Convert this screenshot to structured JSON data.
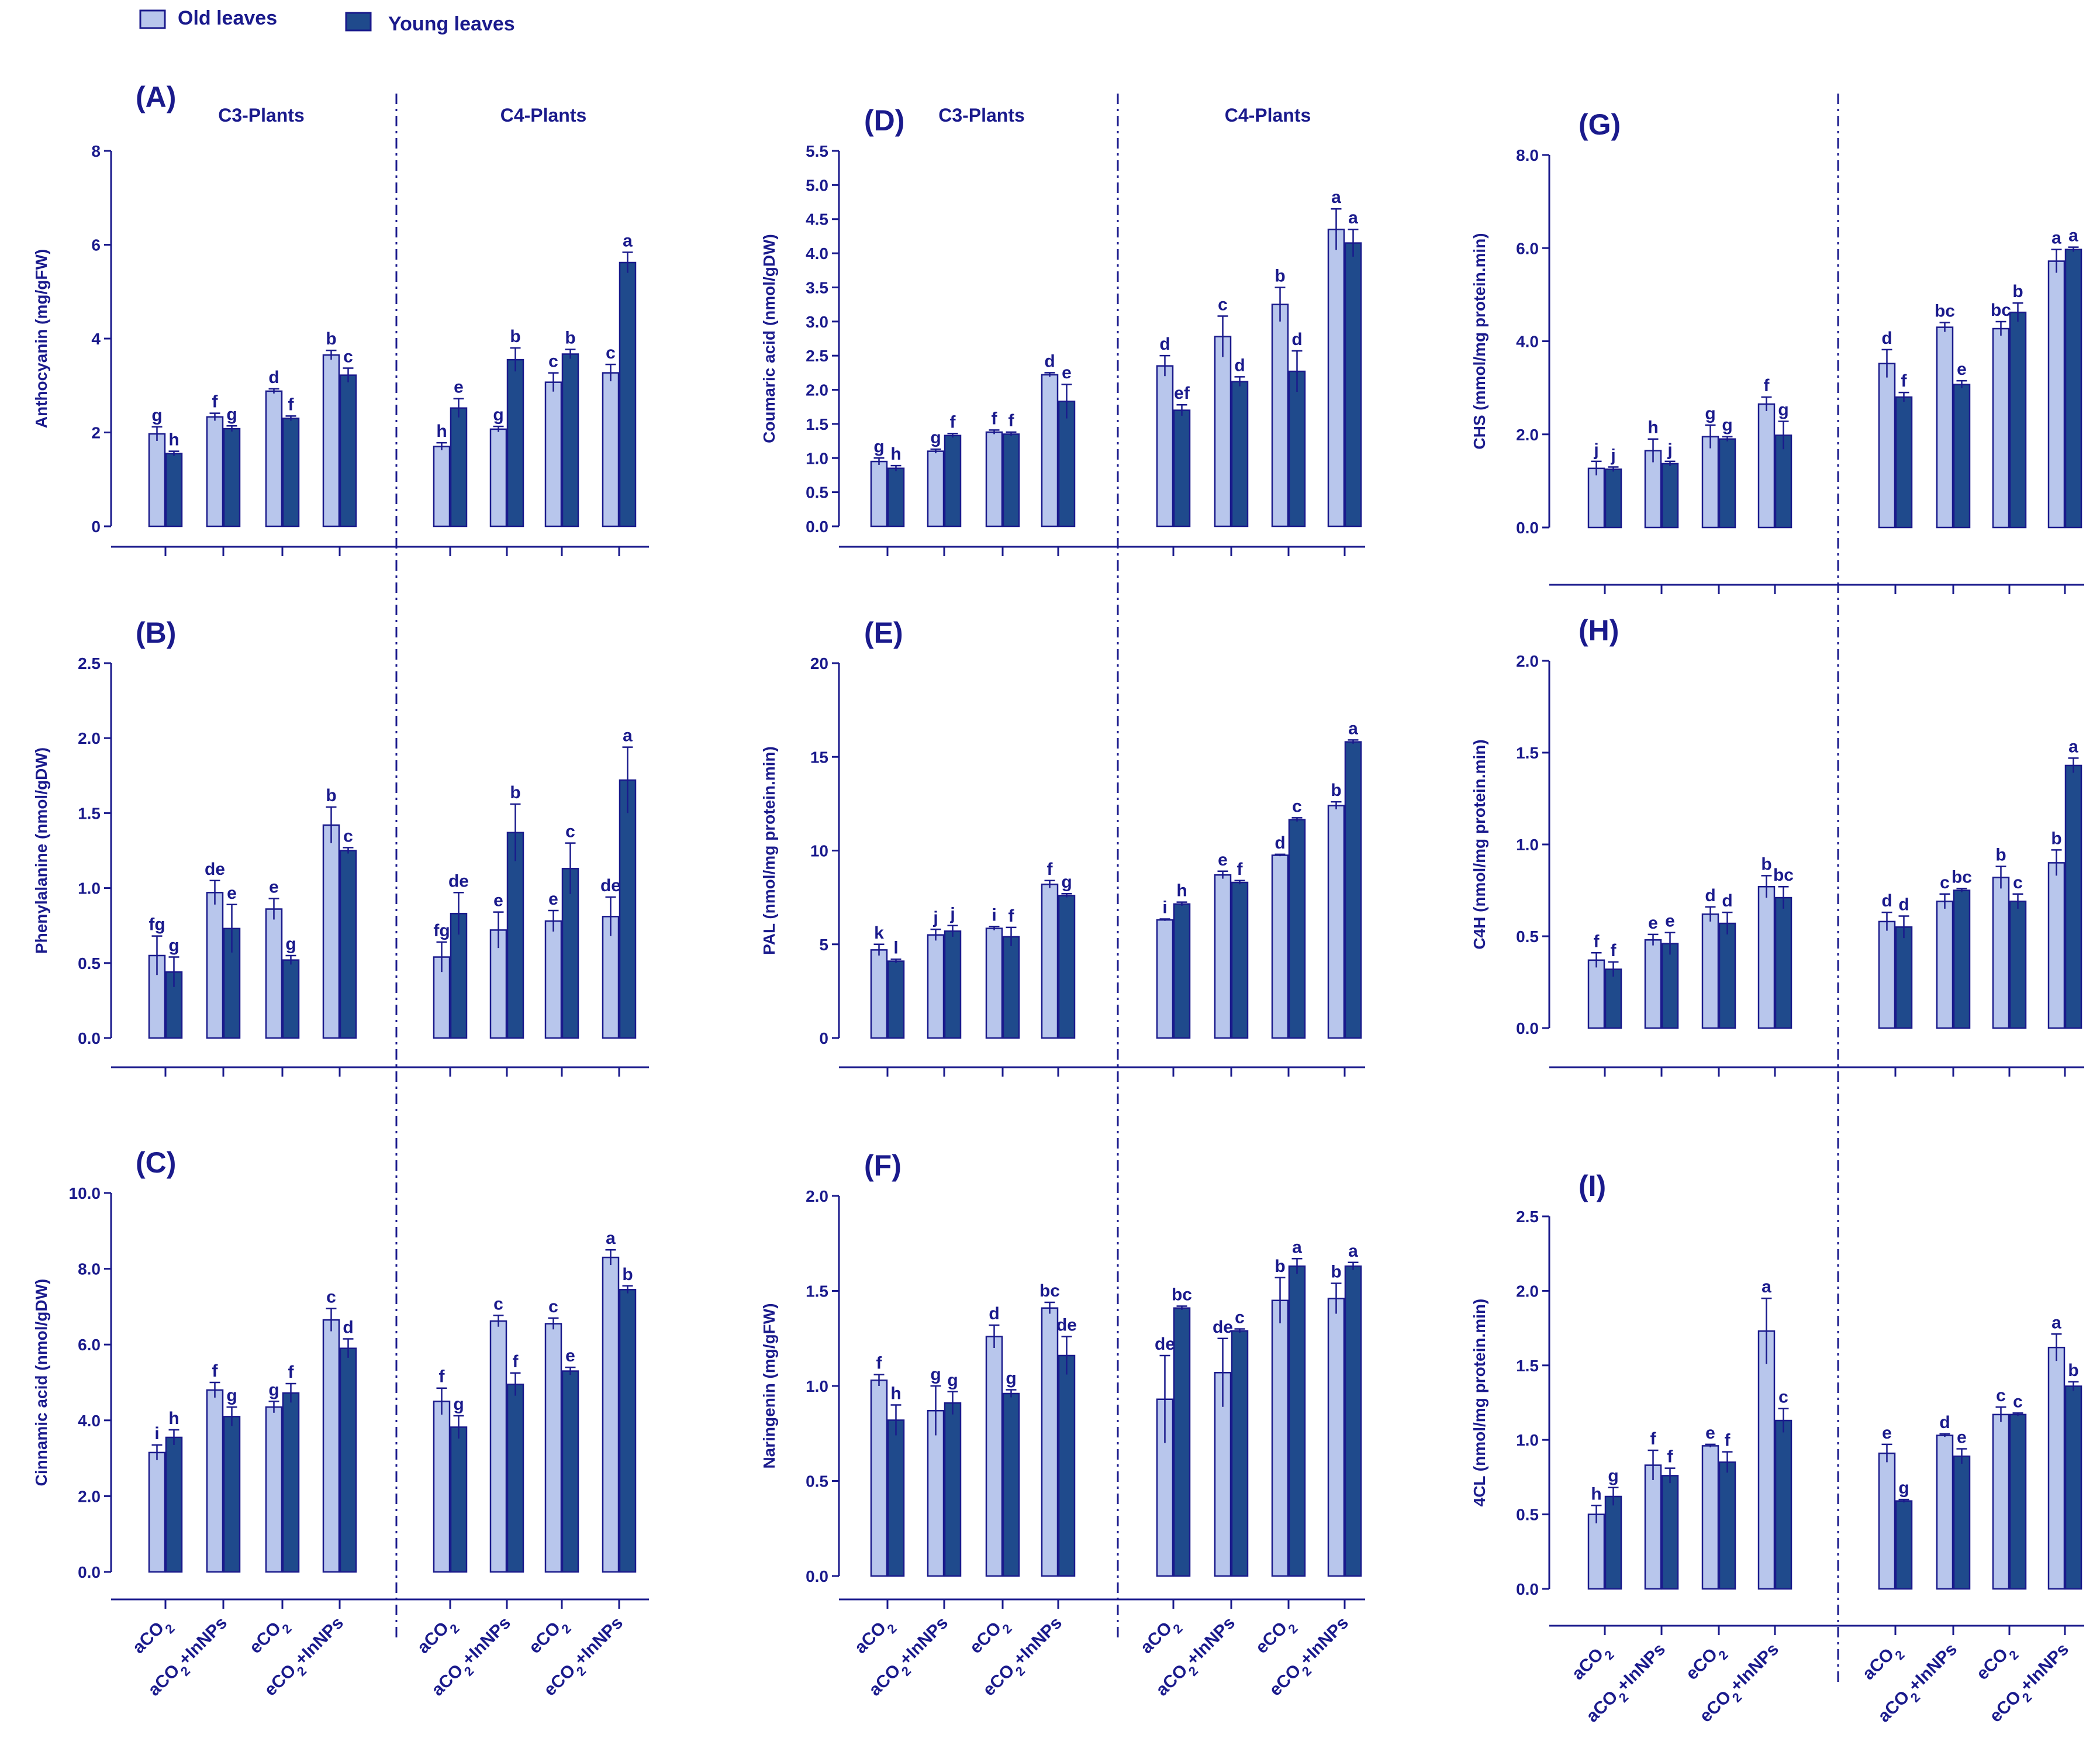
{
  "colors": {
    "old": "#b8c6ec",
    "young": "#1f4a8c",
    "ink": "#1a1a8c"
  },
  "legend": {
    "old_label": "Old leaves",
    "young_label": "Young leaves"
  },
  "group_headers": {
    "c3": "C3-Plants",
    "c4": "C4-Plants"
  },
  "chart_data": [
    {
      "id": "A",
      "type": "bar",
      "panel_label": "(A)",
      "ylabel": "Anthocyanin (mg/gFW)",
      "ylim": [
        0,
        8
      ],
      "yticks": [
        "0",
        "2",
        "4",
        "6",
        "8"
      ],
      "show_group_headers": true,
      "categories": [
        "aCO2",
        "aCO2+InNPs",
        "eCO2",
        "eCO2+InNPs"
      ],
      "c3": {
        "old": [
          1.97,
          2.33,
          2.88,
          3.65
        ],
        "old_err": [
          0.15,
          0.08,
          0.05,
          0.1
        ],
        "young": [
          1.55,
          2.08,
          2.3,
          3.22
        ],
        "young_err": [
          0.05,
          0.06,
          0.05,
          0.15
        ],
        "old_letters": [
          "g",
          "f",
          "d",
          "b"
        ],
        "young_letters": [
          "h",
          "g",
          "f",
          "c"
        ]
      },
      "c4": {
        "old": [
          1.7,
          2.07,
          3.07,
          3.27
        ],
        "old_err": [
          0.08,
          0.06,
          0.2,
          0.18
        ],
        "young": [
          2.52,
          3.55,
          3.67,
          5.62
        ],
        "young_err": [
          0.2,
          0.25,
          0.1,
          0.22
        ],
        "old_letters": [
          "h",
          "g",
          "c",
          "c"
        ],
        "young_letters": [
          "e",
          "b",
          "b",
          "a"
        ]
      }
    },
    {
      "id": "B",
      "type": "bar",
      "panel_label": "(B)",
      "ylabel": "Phenylalanine (nmol/gDW)",
      "ylim": [
        0,
        2.5
      ],
      "yticks": [
        "0.0",
        "0.5",
        "1.0",
        "1.5",
        "2.0",
        "2.5"
      ],
      "show_group_headers": false,
      "categories": [
        "aCO2",
        "aCO2+InNPs",
        "eCO2",
        "eCO2+InNPs"
      ],
      "c3": {
        "old": [
          0.55,
          0.97,
          0.86,
          1.42
        ],
        "old_err": [
          0.13,
          0.08,
          0.07,
          0.12
        ],
        "young": [
          0.44,
          0.73,
          0.52,
          1.25
        ],
        "young_err": [
          0.1,
          0.16,
          0.03,
          0.02
        ],
        "old_letters": [
          "fg",
          "de",
          "e",
          "b"
        ],
        "young_letters": [
          "g",
          "e",
          "g",
          "c"
        ]
      },
      "c4": {
        "old": [
          0.54,
          0.72,
          0.78,
          0.81
        ],
        "old_err": [
          0.1,
          0.12,
          0.07,
          0.13
        ],
        "young": [
          0.83,
          1.37,
          1.13,
          1.72
        ],
        "young_err": [
          0.14,
          0.19,
          0.17,
          0.22
        ],
        "old_letters": [
          "fg",
          "e",
          "e",
          "de"
        ],
        "young_letters": [
          "de",
          "b",
          "c",
          "a"
        ]
      }
    },
    {
      "id": "C",
      "type": "bar",
      "panel_label": "(C)",
      "ylabel": "Cinnamic acid (nmol/gDW)",
      "ylim": [
        0,
        10
      ],
      "yticks": [
        "0.0",
        "2.0",
        "4.0",
        "6.0",
        "8.0",
        "10.0"
      ],
      "show_group_headers": false,
      "categories": [
        "aCO2",
        "aCO2+InNPs",
        "eCO2",
        "eCO2+InNPs"
      ],
      "c3": {
        "old": [
          3.15,
          4.8,
          4.35,
          6.65
        ],
        "old_err": [
          0.2,
          0.2,
          0.15,
          0.3
        ],
        "young": [
          3.55,
          4.1,
          4.72,
          5.9
        ],
        "young_err": [
          0.2,
          0.25,
          0.25,
          0.25
        ],
        "old_letters": [
          "i",
          "f",
          "g",
          "c"
        ],
        "young_letters": [
          "h",
          "g",
          "f",
          "d"
        ]
      },
      "c4": {
        "old": [
          4.5,
          6.62,
          6.55,
          8.3
        ],
        "old_err": [
          0.35,
          0.15,
          0.15,
          0.2
        ],
        "young": [
          3.82,
          4.95,
          5.3,
          7.45
        ],
        "young_err": [
          0.3,
          0.3,
          0.1,
          0.1
        ],
        "old_letters": [
          "f",
          "c",
          "c",
          "a"
        ],
        "young_letters": [
          "g",
          "f",
          "e",
          "b"
        ]
      }
    },
    {
      "id": "D",
      "type": "bar",
      "panel_label": "(D)",
      "ylabel": "Coumaric acid (nmol/gDW)",
      "ylim": [
        0,
        5.5
      ],
      "yticks": [
        "0.0",
        "0.5",
        "1.0",
        "1.5",
        "2.0",
        "2.5",
        "3.0",
        "3.5",
        "4.0",
        "4.5",
        "5.0",
        "5.5"
      ],
      "show_group_headers": true,
      "categories": [
        "aCO2",
        "aCO2+InNPs",
        "eCO2",
        "eCO2+InNPs"
      ],
      "c3": {
        "old": [
          0.95,
          1.1,
          1.38,
          2.22
        ],
        "old_err": [
          0.05,
          0.03,
          0.03,
          0.03
        ],
        "young": [
          0.85,
          1.33,
          1.35,
          1.83
        ],
        "young_err": [
          0.04,
          0.03,
          0.03,
          0.25
        ],
        "old_letters": [
          "g",
          "g",
          "f",
          "d"
        ],
        "young_letters": [
          "h",
          "f",
          "f",
          "e"
        ]
      },
      "c4": {
        "old": [
          2.35,
          2.78,
          3.25,
          4.35
        ],
        "old_err": [
          0.15,
          0.3,
          0.25,
          0.3
        ],
        "young": [
          1.7,
          2.12,
          2.27,
          4.15
        ],
        "young_err": [
          0.08,
          0.07,
          0.3,
          0.2
        ],
        "old_letters": [
          "d",
          "c",
          "b",
          "a"
        ],
        "young_letters": [
          "ef",
          "d",
          "d",
          "a"
        ]
      }
    },
    {
      "id": "E",
      "type": "bar",
      "panel_label": "(E)",
      "ylabel": "PAL  (nmol/mg protein.min)",
      "ylim": [
        0,
        20
      ],
      "yticks": [
        "0",
        "5",
        "10",
        "15",
        "20"
      ],
      "show_group_headers": false,
      "categories": [
        "aCO2",
        "aCO2+InNPs",
        "eCO2",
        "eCO2+InNPs"
      ],
      "c3": {
        "old": [
          4.7,
          5.5,
          5.85,
          8.2
        ],
        "old_err": [
          0.3,
          0.3,
          0.1,
          0.2
        ],
        "young": [
          4.1,
          5.7,
          5.4,
          7.6
        ],
        "young_err": [
          0.1,
          0.3,
          0.5,
          0.1
        ],
        "old_letters": [
          "k",
          "j",
          "i",
          "f"
        ],
        "young_letters": [
          "l",
          "j",
          "f",
          "g"
        ]
      },
      "c4": {
        "old": [
          6.3,
          8.7,
          9.75,
          12.4
        ],
        "old_err": [
          0.05,
          0.2,
          0.05,
          0.2
        ],
        "young": [
          7.15,
          8.3,
          11.65,
          15.8
        ],
        "young_err": [
          0.1,
          0.1,
          0.1,
          0.1
        ],
        "old_letters": [
          "i",
          "e",
          "d",
          "b"
        ],
        "young_letters": [
          "h",
          "f",
          "c",
          "a"
        ]
      }
    },
    {
      "id": "F",
      "type": "bar",
      "panel_label": "(F)",
      "ylabel": "Naringenin  (mg/gFW)",
      "ylim": [
        0,
        2
      ],
      "yticks": [
        "0.0",
        "0.5",
        "1.0",
        "1.5",
        "2.0"
      ],
      "show_group_headers": false,
      "categories": [
        "aCO2",
        "aCO2+InNPs",
        "eCO2",
        "eCO2+InNPs"
      ],
      "c3": {
        "old": [
          1.03,
          0.87,
          1.26,
          1.41
        ],
        "old_err": [
          0.03,
          0.13,
          0.06,
          0.03
        ],
        "young": [
          0.82,
          0.91,
          0.96,
          1.16
        ],
        "young_err": [
          0.08,
          0.06,
          0.02,
          0.1
        ],
        "old_letters": [
          "f",
          "g",
          "d",
          "bc"
        ],
        "young_letters": [
          "h",
          "g",
          "g",
          "de"
        ]
      },
      "c4": {
        "old": [
          0.93,
          1.07,
          1.45,
          1.46
        ],
        "old_err": [
          0.23,
          0.18,
          0.12,
          0.08
        ],
        "young": [
          1.41,
          1.29,
          1.63,
          1.63
        ],
        "young_err": [
          0.01,
          0.01,
          0.04,
          0.02
        ],
        "old_letters": [
          "de",
          "de",
          "b",
          "b"
        ],
        "young_letters": [
          "bc",
          "c",
          "a",
          "a"
        ]
      }
    },
    {
      "id": "G",
      "type": "bar",
      "panel_label": "(G)",
      "ylabel": "CHS  (mmol/mg protein.min)",
      "ylim": [
        0,
        8
      ],
      "yticks": [
        "0.0",
        "2.0",
        "4.0",
        "6.0",
        "8.0"
      ],
      "show_group_headers": false,
      "categories": [
        "aCO2",
        "aCO2+InNPs",
        "eCO2",
        "eCO2+InNPs"
      ],
      "c3": {
        "old": [
          1.27,
          1.65,
          1.95,
          2.65
        ],
        "old_err": [
          0.15,
          0.25,
          0.25,
          0.15
        ],
        "young": [
          1.25,
          1.37,
          1.9,
          1.98
        ],
        "young_err": [
          0.05,
          0.05,
          0.05,
          0.3
        ],
        "old_letters": [
          "j",
          "h",
          "g",
          "f"
        ],
        "young_letters": [
          "j",
          "j",
          "g",
          "g"
        ]
      },
      "c4": {
        "old": [
          3.52,
          4.3,
          4.27,
          5.72
        ],
        "old_err": [
          0.3,
          0.1,
          0.15,
          0.25
        ],
        "young": [
          2.8,
          3.07,
          4.62,
          5.97
        ],
        "young_err": [
          0.1,
          0.08,
          0.2,
          0.05
        ],
        "old_letters": [
          "d",
          "bc",
          "bc",
          "a"
        ],
        "young_letters": [
          "f",
          "e",
          "b",
          "a"
        ]
      }
    },
    {
      "id": "H",
      "type": "bar",
      "panel_label": "(H)",
      "ylabel": "C4H (nmol/mg protein.min)",
      "ylim": [
        0,
        2
      ],
      "yticks": [
        "0.0",
        "0.5",
        "1.0",
        "1.5",
        "2.0"
      ],
      "show_group_headers": false,
      "categories": [
        "aCO2",
        "aCO2+InNPs",
        "eCO2",
        "eCO2+InNPs"
      ],
      "c3": {
        "old": [
          0.37,
          0.48,
          0.62,
          0.77
        ],
        "old_err": [
          0.04,
          0.03,
          0.04,
          0.06
        ],
        "young": [
          0.32,
          0.46,
          0.57,
          0.71
        ],
        "young_err": [
          0.04,
          0.06,
          0.06,
          0.06
        ],
        "old_letters": [
          "f",
          "e",
          "d",
          "b"
        ],
        "young_letters": [
          "f",
          "e",
          "d",
          "bc"
        ]
      },
      "c4": {
        "old": [
          0.58,
          0.69,
          0.82,
          0.9
        ],
        "old_err": [
          0.05,
          0.04,
          0.06,
          0.07
        ],
        "young": [
          0.55,
          0.75,
          0.69,
          1.43
        ],
        "young_err": [
          0.06,
          0.01,
          0.04,
          0.04
        ],
        "old_letters": [
          "d",
          "c",
          "b",
          "b"
        ],
        "young_letters": [
          "d",
          "bc",
          "c",
          "a"
        ]
      }
    },
    {
      "id": "I",
      "type": "bar",
      "panel_label": "(I)",
      "ylabel": "4CL  (nmol/mg protein.min)",
      "ylim": [
        0,
        2.5
      ],
      "yticks": [
        "0.0",
        "0.5",
        "1.0",
        "1.5",
        "2.0",
        "2.5"
      ],
      "show_group_headers": false,
      "categories": [
        "aCO2",
        "aCO2+InNPs",
        "eCO2",
        "eCO2+InNPs"
      ],
      "c3": {
        "old": [
          0.5,
          0.83,
          0.96,
          1.73
        ],
        "old_err": [
          0.06,
          0.1,
          0.01,
          0.22
        ],
        "young": [
          0.62,
          0.76,
          0.85,
          1.13
        ],
        "young_err": [
          0.06,
          0.05,
          0.07,
          0.08
        ],
        "old_letters": [
          "h",
          "f",
          "e",
          "a"
        ],
        "young_letters": [
          "g",
          "f",
          "f",
          "c"
        ]
      },
      "c4": {
        "old": [
          0.91,
          1.03,
          1.17,
          1.62
        ],
        "old_err": [
          0.06,
          0.01,
          0.05,
          0.09
        ],
        "young": [
          0.59,
          0.89,
          1.17,
          1.36
        ],
        "young_err": [
          0.01,
          0.05,
          0.01,
          0.03
        ],
        "old_letters": [
          "e",
          "d",
          "c",
          "a"
        ],
        "young_letters": [
          "g",
          "e",
          "c",
          "b"
        ]
      }
    }
  ]
}
